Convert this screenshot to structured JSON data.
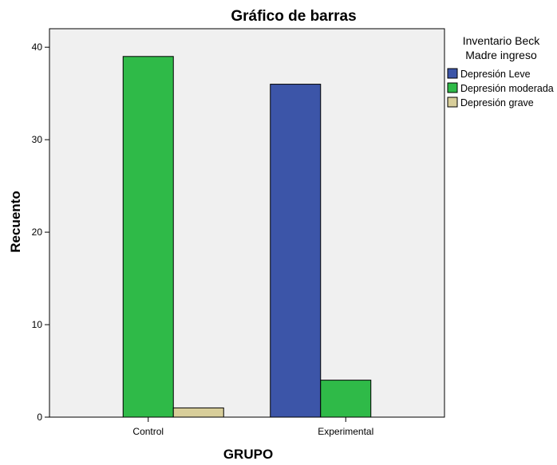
{
  "chart_data": {
    "type": "bar",
    "title": "Gráfico de barras",
    "xlabel": "GRUPO",
    "ylabel": "Recuento",
    "categories": [
      "Control",
      "Experimental"
    ],
    "series": [
      {
        "name": "Depresión Leve",
        "color": "#3c55a8",
        "values": [
          0,
          36
        ]
      },
      {
        "name": "Depresión moderada",
        "color": "#2fba48",
        "values": [
          39,
          4
        ]
      },
      {
        "name": "Depresión grave",
        "color": "#d8ce9a",
        "values": [
          1,
          0
        ]
      }
    ],
    "legend_title": [
      "Inventario Beck",
      "Madre ingreso"
    ],
    "legend_position": "right",
    "ylim": [
      0,
      42
    ],
    "yticks": [
      "0",
      "10",
      "20",
      "30",
      "40"
    ],
    "grid": false,
    "plot_background": "#f0f0f0"
  }
}
